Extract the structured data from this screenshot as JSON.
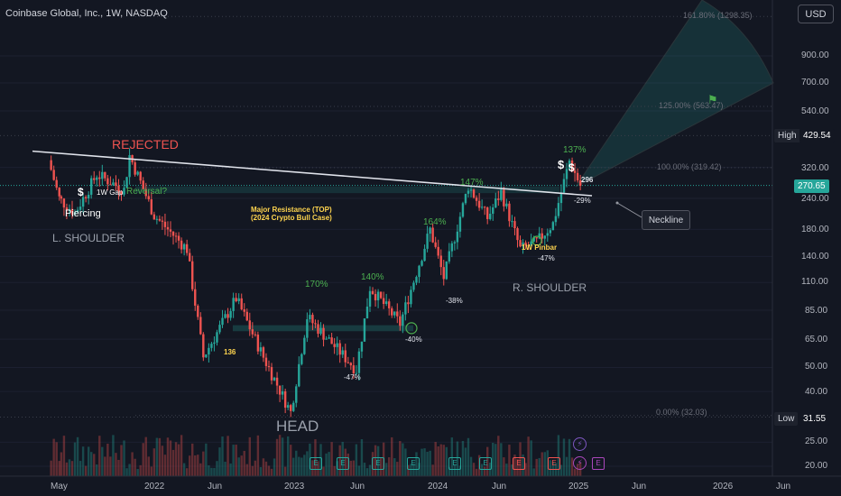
{
  "header": {
    "symbol_title": "Coinbase Global, Inc., 1W, NASDAQ",
    "currency": "USD"
  },
  "price_axis": {
    "ticks": [
      "900.00",
      "700.00",
      "540.00",
      "320.00",
      "240.00",
      "180.00",
      "140.00",
      "110.00",
      "85.00",
      "65.00",
      "50.00",
      "40.00",
      "25.00",
      "20.00"
    ],
    "high_label": "High",
    "high_value": "429.54",
    "current_value": "270.65",
    "low_label": "Low",
    "low_value": "31.55"
  },
  "time_axis": {
    "ticks": [
      "May",
      "2022",
      "Jun",
      "2023",
      "Jun",
      "2024",
      "Jun",
      "2025",
      "Jun",
      "2026",
      "Jun"
    ]
  },
  "fib_levels": [
    "161.80% (1298.35)",
    "125.00% (563.47)",
    "100.00% (319.42)",
    "0.00% (32.03)"
  ],
  "annotations": {
    "rejected": "REJECTED",
    "piercing": "Piercing",
    "gap": "1W Gap",
    "reversal": "Reversal?",
    "left_shoulder": "L. SHOULDER",
    "head": "HEAD",
    "right_shoulder": "R. SHOULDER",
    "resistance_line1": "Major Resistance (TOP)",
    "resistance_line2": "(2024 Crypto Bull Case)",
    "pinbar": "1W Pinbar",
    "neckline": "Neckline",
    "pct_170": "170%",
    "pct_140": "140%",
    "pct_164": "164%",
    "pct_147": "147%",
    "pct_137": "137%",
    "pct_m47a": "-47%",
    "pct_m40": "-40%",
    "pct_m38": "-38%",
    "pct_m47b": "-47%",
    "pct_m29": "-29%",
    "pct_296": "296",
    "pct_136": "136"
  },
  "chart_data": {
    "type": "candlestick",
    "title": "Coinbase Global, Inc., 1W, NASDAQ",
    "scale": "log",
    "ylim": [
      18,
      1400
    ],
    "xlim": [
      "2021-04-14",
      "2026-06-30"
    ],
    "high": 429.54,
    "low": 31.55,
    "last": 270.65,
    "pivots": [
      {
        "date": "2021-04-14",
        "close": 342
      },
      {
        "date": "2021-05-10",
        "close": 240
      },
      {
        "date": "2021-06-21",
        "close": 210
      },
      {
        "date": "2021-08-16",
        "close": 300
      },
      {
        "date": "2021-10-25",
        "close": 260
      },
      {
        "date": "2021-11-08",
        "close": 357
      },
      {
        "date": "2022-01-10",
        "close": 205
      },
      {
        "date": "2022-04-04",
        "close": 150
      },
      {
        "date": "2022-05-16",
        "close": 55
      },
      {
        "date": "2022-08-08",
        "close": 95
      },
      {
        "date": "2022-10-17",
        "close": 55
      },
      {
        "date": "2022-12-26",
        "close": 33
      },
      {
        "date": "2023-02-06",
        "close": 80
      },
      {
        "date": "2023-06-12",
        "close": 49
      },
      {
        "date": "2023-07-17",
        "close": 105
      },
      {
        "date": "2023-10-02",
        "close": 75
      },
      {
        "date": "2023-12-18",
        "close": 180
      },
      {
        "date": "2024-01-22",
        "close": 115
      },
      {
        "date": "2024-03-25",
        "close": 270
      },
      {
        "date": "2024-05-13",
        "close": 200
      },
      {
        "date": "2024-06-17",
        "close": 255
      },
      {
        "date": "2024-08-05",
        "close": 150
      },
      {
        "date": "2024-09-16",
        "close": 160
      },
      {
        "date": "2024-10-28",
        "close": 190
      },
      {
        "date": "2024-12-09",
        "close": 340
      },
      {
        "date": "2025-01-06",
        "close": 270.65
      }
    ],
    "neckline": [
      {
        "date": "2021-04-14",
        "value": 372
      },
      {
        "date": "2025-01-27",
        "value": 246
      }
    ],
    "fibonacci": [
      {
        "level": "0.00%",
        "value": 32.03
      },
      {
        "level": "100.00%",
        "value": 319.42
      },
      {
        "level": "125.00%",
        "value": 563.47
      },
      {
        "level": "161.80%",
        "value": 1298.35
      }
    ]
  }
}
